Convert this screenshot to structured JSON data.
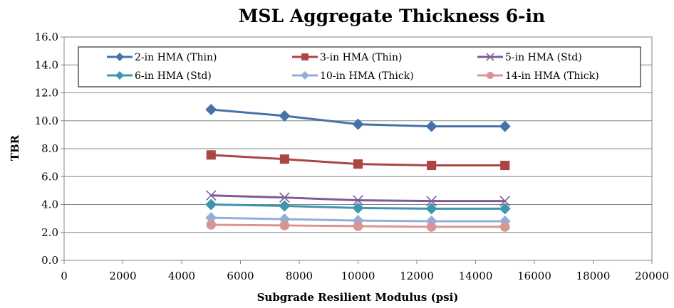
{
  "chart_data": {
    "type": "line",
    "title": "MSL Aggregate Thickness 6-in",
    "xlabel": "Subgrade Resilient Modulus (psi)",
    "ylabel": "TBR",
    "xlim": [
      0,
      20000
    ],
    "ylim": [
      0,
      16
    ],
    "x_ticks": [
      "0",
      "2000",
      "4000",
      "6000",
      "8000",
      "10000",
      "12000",
      "14000",
      "16000",
      "18000",
      "20000"
    ],
    "y_ticks": [
      "0.0",
      "2.0",
      "4.0",
      "6.0",
      "8.0",
      "10.0",
      "12.0",
      "14.0",
      "16.0"
    ],
    "grid": "horizontal",
    "legend_position": "top",
    "x": [
      5000,
      7500,
      10000,
      12500,
      15000
    ],
    "series": [
      {
        "name": "2-in HMA (Thin)",
        "color": "#4572A7",
        "marker": "diamond",
        "values": [
          10.8,
          10.35,
          9.75,
          9.6,
          9.6
        ]
      },
      {
        "name": "3-in HMA (Thin)",
        "color": "#AA4643",
        "marker": "square",
        "values": [
          7.55,
          7.25,
          6.9,
          6.8,
          6.8
        ]
      },
      {
        "name": "5-in HMA (Std)",
        "color": "#7B5C96",
        "marker": "x",
        "values": [
          4.65,
          4.5,
          4.3,
          4.25,
          4.25
        ]
      },
      {
        "name": "6-in HMA (Std)",
        "color": "#3D96AE",
        "marker": "diamond",
        "values": [
          4.0,
          3.9,
          3.75,
          3.7,
          3.7
        ]
      },
      {
        "name": "10-in HMA (Thick)",
        "color": "#93AFD9",
        "marker": "diamond",
        "values": [
          3.05,
          2.95,
          2.85,
          2.8,
          2.8
        ]
      },
      {
        "name": "14-in HMA (Thick)",
        "color": "#D99594",
        "marker": "circle",
        "values": [
          2.55,
          2.5,
          2.45,
          2.4,
          2.4
        ]
      }
    ]
  }
}
